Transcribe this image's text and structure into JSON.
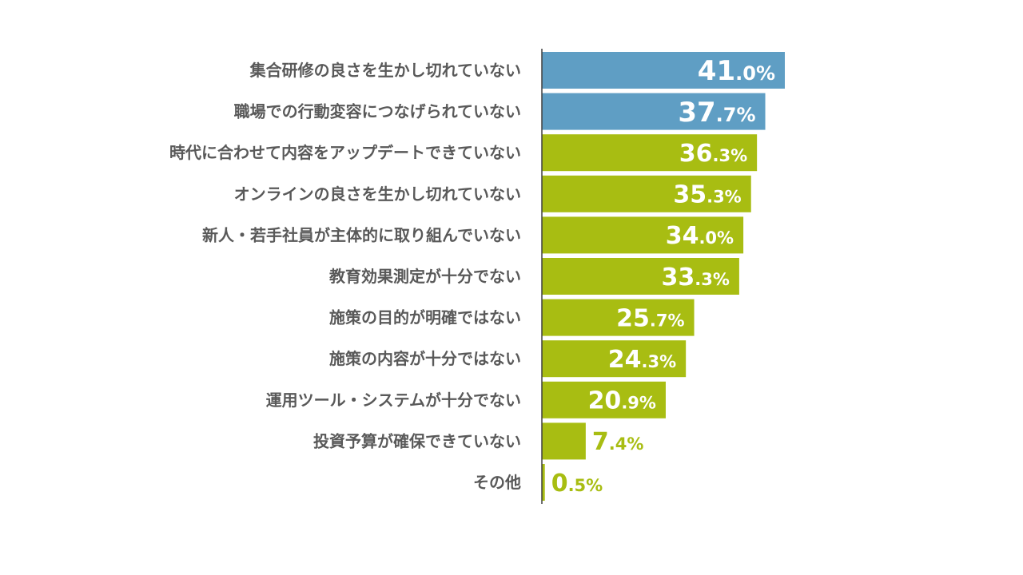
{
  "chart_data": {
    "type": "bar",
    "orientation": "horizontal",
    "categories": [
      "集合研修の良さを生かし切れていない",
      "職場での行動変容につなげられていない",
      "時代に合わせて内容をアップデートできていない",
      "オンラインの良さを生かし切れていない",
      "新人・若手社員が主体的に取り組んでいない",
      "教育効果測定が十分でない",
      "施策の目的が明確ではない",
      "施策の内容が十分ではない",
      "運用ツール・システムが十分でない",
      "投資予算が確保できていない",
      "その他"
    ],
    "values": [
      41.0,
      37.7,
      36.3,
      35.3,
      34.0,
      33.3,
      25.7,
      24.3,
      20.9,
      7.4,
      0.5
    ],
    "value_labels": [
      "41.0%",
      "37.7%",
      "36.3%",
      "35.3%",
      "34.0%",
      "33.3%",
      "25.7%",
      "24.3%",
      "20.9%",
      "7.4%",
      "0.5%"
    ],
    "unit": "%",
    "xlim": [
      0,
      41.0
    ],
    "grid": false,
    "legend": "none",
    "colors": {
      "highlight": "#5f9ec4",
      "default": "#a8bd12",
      "axis": "#404040",
      "label": "#595959",
      "value_inside": "#ffffff",
      "value_outside": "#a8bd12"
    },
    "highlight_count": 2
  }
}
